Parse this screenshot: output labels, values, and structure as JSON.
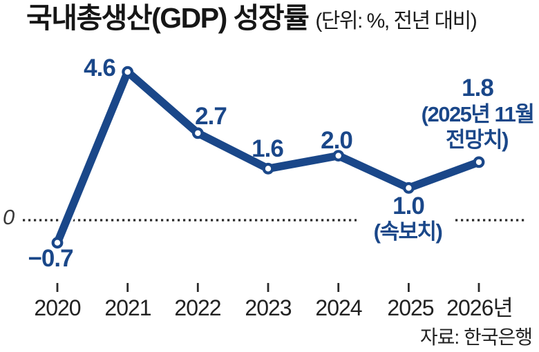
{
  "header": {
    "title": "국내총생산(GDP) 성장률",
    "unit_note": "(단위: %, 전년 대비)"
  },
  "axis": {
    "zero_label": "0",
    "years": [
      "2020",
      "2021",
      "2022",
      "2023",
      "2024",
      "2025",
      "2026년"
    ]
  },
  "source": "자료: 한국은행",
  "colors": {
    "line": "#1a4789",
    "marker_fill": "#ffffff",
    "axis": "#2b2b2b",
    "value_label": "#1a4789",
    "text": "#1a1a1a"
  },
  "chart_data": {
    "type": "line",
    "title": "국내총생산(GDP) 성장률",
    "unit": "%, 전년 대비",
    "categories": [
      "2020",
      "2021",
      "2022",
      "2023",
      "2024",
      "2025",
      "2026"
    ],
    "values": [
      -0.7,
      4.6,
      2.7,
      1.6,
      2.0,
      1.0,
      1.8
    ],
    "value_labels": [
      "−0.7",
      "4.6",
      "2.7",
      "1.6",
      "2.0",
      "1.0",
      "1.8"
    ],
    "annotations": {
      "y2025_note": "(속보치)",
      "y2026_note_line1": "(2025년 11월",
      "y2026_note_line2": "전망치)"
    },
    "baseline": 0,
    "ylim": [
      -1.5,
      5.0
    ],
    "grid": "dotted zero baseline only",
    "legend": "none",
    "source": "자료: 한국은행"
  }
}
